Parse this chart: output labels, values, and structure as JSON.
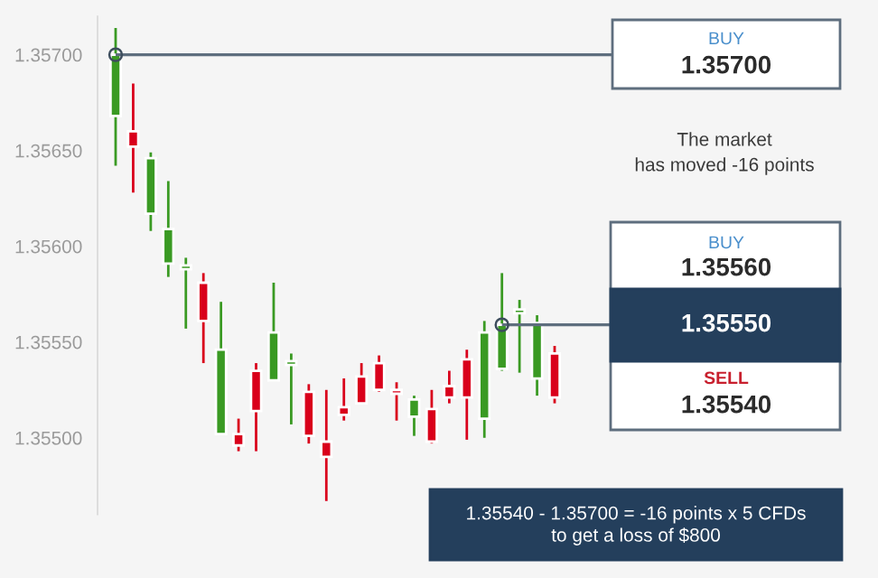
{
  "chart_data": {
    "type": "candlestick",
    "categories": [
      null,
      null,
      null,
      null,
      null,
      null,
      null,
      null,
      null,
      null,
      null,
      null,
      null,
      null,
      null,
      null,
      null,
      null,
      null,
      null,
      null,
      null,
      null,
      null,
      null,
      null
    ],
    "ohlc": [
      [
        1.35668,
        1.35714,
        1.35642,
        1.357
      ],
      [
        1.3566,
        1.35685,
        1.35628,
        1.35652
      ],
      [
        1.35617,
        1.35649,
        1.35608,
        1.35646
      ],
      [
        1.35591,
        1.35634,
        1.35584,
        1.35609
      ],
      [
        1.35588,
        1.35594,
        1.35557,
        1.3559
      ],
      [
        1.35581,
        1.35586,
        1.35539,
        1.35561
      ],
      [
        1.35502,
        1.35571,
        1.35502,
        1.35546
      ],
      [
        1.35502,
        1.3551,
        1.35493,
        1.35496
      ],
      [
        1.35535,
        1.35539,
        1.35493,
        1.35514
      ],
      [
        1.3553,
        1.35581,
        1.3553,
        1.35555
      ],
      [
        1.35538,
        1.35544,
        1.35507,
        1.3554
      ],
      [
        1.35524,
        1.35528,
        1.35497,
        1.35501
      ],
      [
        1.35498,
        1.35525,
        1.35467,
        1.3549
      ],
      [
        1.35516,
        1.35531,
        1.35509,
        1.35512
      ],
      [
        1.35532,
        1.35539,
        1.35518,
        1.35518
      ],
      [
        1.35539,
        1.35543,
        1.35524,
        1.35525
      ],
      [
        1.35525,
        1.35529,
        1.35509,
        1.35523
      ],
      [
        1.35511,
        1.35522,
        1.35501,
        1.3552
      ],
      [
        1.35515,
        1.35525,
        1.35497,
        1.35498
      ],
      [
        1.35527,
        1.35535,
        1.35518,
        1.35521
      ],
      [
        1.35541,
        1.35546,
        1.35499,
        1.35521
      ],
      [
        1.3551,
        1.35561,
        1.355,
        1.35555
      ],
      [
        1.35536,
        1.35586,
        1.35535,
        1.35559
      ],
      [
        1.35565,
        1.35572,
        1.35534,
        1.35567
      ],
      [
        1.35531,
        1.35564,
        1.35522,
        1.3556
      ],
      [
        1.35544,
        1.35548,
        1.35518,
        1.35521
      ]
    ],
    "colors": [
      "#3a9a23",
      "#d9001b",
      "#3a9a23",
      "#3a9a23",
      "#3a9a23",
      "#d9001b",
      "#3a9a23",
      "#d9001b",
      "#d9001b",
      "#3a9a23",
      "#3a9a23",
      "#d9001b",
      "#d9001b",
      "#d9001b",
      "#d9001b",
      "#d9001b",
      "#d9001b",
      "#3a9a23",
      "#d9001b",
      "#d9001b",
      "#d9001b",
      "#3a9a23",
      "#3a9a23",
      "#3a9a23",
      "#3a9a23",
      "#d9001b"
    ],
    "ylim": [
      1.3546,
      1.3572
    ],
    "yticks": [
      {
        "value": 1.355,
        "label": "1.35500"
      },
      {
        "value": 1.3555,
        "label": "1.35550"
      },
      {
        "value": 1.356,
        "label": "1.35600"
      },
      {
        "value": 1.3565,
        "label": "1.35650"
      },
      {
        "value": 1.357,
        "label": "1.35700"
      }
    ],
    "tick_labels": "y",
    "grid": false,
    "ref_lines": [
      {
        "axis": "y",
        "value": 1.357,
        "color": "#5e6e7e"
      },
      {
        "axis": "y",
        "value": 1.35559,
        "color": "#5e6e7e"
      }
    ],
    "annotations": [
      "BUY",
      "1.35700",
      "The market",
      "has moved -16 points",
      "BUY",
      "1.35560",
      "1.35550",
      "SELL",
      "1.35540",
      "1.35540 - 1.35700 = -16 points x 5 CFDs\nto get a loss of $800"
    ]
  }
}
